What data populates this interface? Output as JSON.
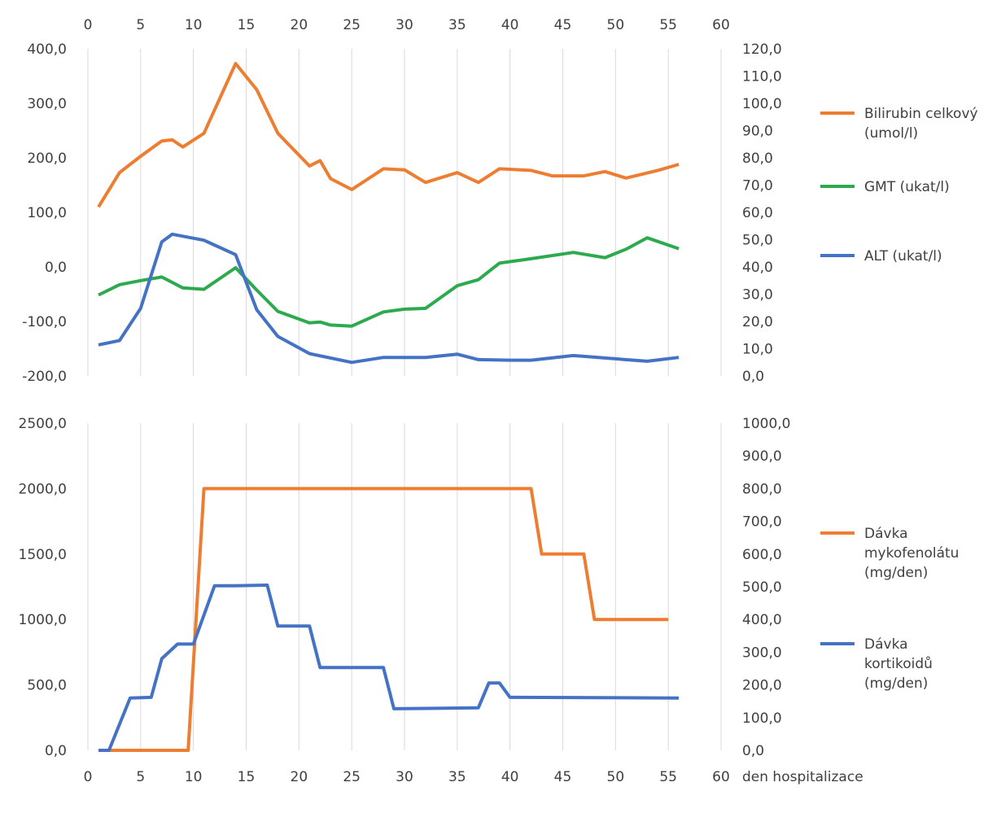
{
  "chart_data": [
    {
      "type": "line",
      "grid": "vertical",
      "legend_position": "right",
      "x_ticks": [
        "0",
        "5",
        "10",
        "15",
        "20",
        "25",
        "30",
        "35",
        "40",
        "45",
        "50",
        "55",
        "60"
      ],
      "x_ticks_position": "top",
      "xlim": [
        0,
        60
      ],
      "ylim_left": [
        -200,
        400
      ],
      "ylim_right": [
        0,
        120
      ],
      "y_left_ticks": [
        "400,0",
        "300,0",
        "200,0",
        "100,0",
        "0,0",
        "-100,0",
        "-200,0"
      ],
      "y_right_ticks": [
        "120,0",
        "110,0",
        "100,0",
        "90,0",
        "80,0",
        "70,0",
        "60,0",
        "50,0",
        "40,0",
        "30,0",
        "20,0",
        "10,0",
        "0,0"
      ],
      "series": [
        {
          "name_lines": [
            "Bilirubin celkový",
            "(umol/l)"
          ],
          "color": "#ed7d31",
          "axis": "left",
          "x": [
            1,
            3,
            5,
            7,
            8,
            9,
            11,
            14,
            16,
            18,
            21,
            22,
            23,
            25,
            28,
            30,
            32,
            35,
            37,
            39,
            42,
            44,
            47,
            49,
            51,
            54,
            56
          ],
          "y": [
            110,
            173,
            203,
            231,
            233,
            220,
            245,
            373,
            325,
            245,
            185,
            195,
            162,
            142,
            180,
            178,
            155,
            173,
            155,
            180,
            177,
            167,
            167,
            175,
            163,
            177,
            188
          ]
        },
        {
          "name_lines": [
            "GMT (ukat/l)"
          ],
          "color": "#2eaa4e",
          "axis": "right",
          "x": [
            1,
            3,
            5,
            7,
            9,
            11,
            14,
            16,
            18,
            21,
            22,
            23,
            25,
            28,
            30,
            32,
            35,
            37,
            39,
            42,
            46,
            49,
            51,
            53,
            56
          ],
          "y": [
            29.7,
            33.5,
            35.0,
            36.3,
            32.3,
            31.8,
            39.7,
            31.5,
            23.7,
            19.5,
            19.8,
            18.7,
            18.3,
            23.5,
            24.5,
            24.8,
            33.1,
            35.3,
            41.4,
            43.0,
            45.3,
            43.4,
            46.5,
            50.7,
            46.7
          ]
        },
        {
          "name_lines": [
            "ALT (ukat/l)"
          ],
          "color": "#4472c4",
          "axis": "right",
          "x": [
            1,
            3,
            5,
            7,
            8,
            11,
            14,
            16,
            18,
            21,
            25,
            28,
            30,
            32,
            35,
            37,
            40,
            42,
            46,
            50,
            53,
            56
          ],
          "y": [
            11.4,
            13.0,
            24.8,
            49.2,
            52.0,
            49.8,
            44.5,
            24.3,
            14.5,
            8.2,
            5.0,
            6.8,
            6.8,
            6.8,
            8.0,
            6.0,
            5.8,
            5.8,
            7.5,
            6.3,
            5.4,
            6.8
          ]
        }
      ]
    },
    {
      "type": "line",
      "grid": "vertical",
      "legend_position": "right",
      "xlabel": "den hospitalizace",
      "x_ticks": [
        "0",
        "5",
        "10",
        "15",
        "20",
        "25",
        "30",
        "35",
        "40",
        "45",
        "50",
        "55",
        "60"
      ],
      "x_ticks_position": "bottom",
      "xlim": [
        0,
        60
      ],
      "ylim_left": [
        0,
        2500
      ],
      "ylim_right": [
        0,
        1000
      ],
      "y_left_ticks": [
        "2500,0",
        "2000,0",
        "1500,0",
        "1000,0",
        "500,0",
        "0,0"
      ],
      "y_right_ticks": [
        "1000,0",
        "900,0",
        "800,0",
        "700,0",
        "600,0",
        "500,0",
        "400,0",
        "300,0",
        "200,0",
        "100,0",
        "0,0"
      ],
      "series": [
        {
          "name_lines": [
            "Dávka",
            "mykofenolátu",
            "(mg/den)"
          ],
          "color": "#ed7d31",
          "axis": "left",
          "x": [
            1,
            9.5,
            11,
            42,
            43,
            47,
            48,
            55
          ],
          "y": [
            0,
            0,
            2000,
            2000,
            1500,
            1500,
            1000,
            1000
          ]
        },
        {
          "name_lines": [
            "Dávka",
            "kortikoidů",
            "(mg/den)"
          ],
          "color": "#4472c4",
          "axis": "right",
          "x": [
            1,
            2,
            4,
            6,
            7,
            8.5,
            10,
            12,
            14,
            17,
            18,
            21,
            22,
            28,
            29,
            32,
            37,
            38,
            39,
            40,
            56
          ],
          "y": [
            0,
            0,
            160,
            162,
            280,
            325,
            325,
            503,
            503,
            505,
            380,
            380,
            253,
            253,
            127,
            128,
            130,
            206,
            206,
            162,
            160
          ]
        }
      ]
    }
  ]
}
